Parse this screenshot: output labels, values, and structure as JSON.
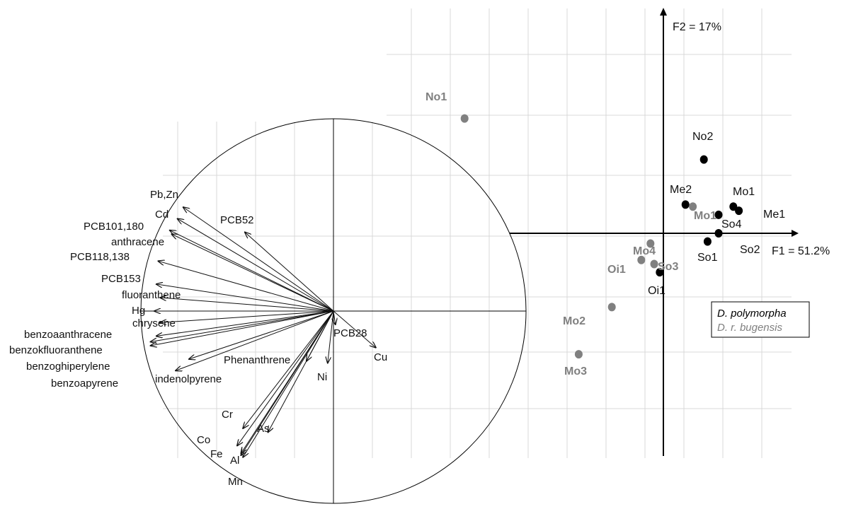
{
  "chart_data": [
    {
      "type": "correlation_circle",
      "variables": [
        {
          "name": "Pb,Zn",
          "x": -0.78,
          "y": 0.54
        },
        {
          "name": "Cd",
          "x": -0.81,
          "y": 0.48
        },
        {
          "name": "PCB52",
          "x": -0.46,
          "y": 0.41
        },
        {
          "name": "PCB101,180",
          "x": -0.85,
          "y": 0.42
        },
        {
          "name": "anthracene",
          "x": -0.84,
          "y": 0.4
        },
        {
          "name": "PCB118,138",
          "x": -0.91,
          "y": 0.26
        },
        {
          "name": "PCB153",
          "x": -0.92,
          "y": 0.14
        },
        {
          "name": "fluoranthene",
          "x": -0.9,
          "y": 0.07
        },
        {
          "name": "Hg",
          "x": -0.93,
          "y": 0.0
        },
        {
          "name": "chrysene",
          "x": -0.9,
          "y": -0.06
        },
        {
          "name": "benzoaanthracene",
          "x": -0.95,
          "y": -0.16
        },
        {
          "name": "benzokfluoranthene",
          "x": -0.92,
          "y": -0.13
        },
        {
          "name": "benzoghiperylene",
          "x": -0.95,
          "y": -0.18
        },
        {
          "name": "benzoapyrene",
          "x": -0.82,
          "y": -0.31
        },
        {
          "name": "indenolpyrene",
          "x": -0.75,
          "y": -0.25
        },
        {
          "name": "Phenanthrene",
          "x": -0.14,
          "y": -0.26
        },
        {
          "name": "PCB28",
          "x": 0.01,
          "y": -0.07
        },
        {
          "name": "Cu",
          "x": 0.22,
          "y": -0.19
        },
        {
          "name": "Ni",
          "x": -0.03,
          "y": -0.27
        },
        {
          "name": "Cr",
          "x": -0.47,
          "y": -0.61
        },
        {
          "name": "As",
          "x": -0.34,
          "y": -0.63
        },
        {
          "name": "Co",
          "x": -0.5,
          "y": -0.7
        },
        {
          "name": "Fe",
          "x": -0.48,
          "y": -0.74
        },
        {
          "name": "Al",
          "x": -0.48,
          "y": -0.75
        },
        {
          "name": "Mn",
          "x": -0.47,
          "y": -0.76
        }
      ]
    },
    {
      "type": "scatter",
      "xlabel": "F1 = 51.2%",
      "ylabel": "F2 = 17%",
      "xlim": [
        -5.8,
        2.9
      ],
      "ylim": [
        -4.8,
        4.5
      ],
      "legend": {
        "position": "lower-right",
        "entries": [
          {
            "name": "D. polymorpha",
            "color": "#000000"
          },
          {
            "name": "D. r. bugensis",
            "color": "#808080"
          }
        ]
      },
      "series": [
        {
          "name": "D. polymorpha",
          "color": "#000000",
          "points": [
            {
              "label": "No2",
              "x": 1.1,
              "y": 1.8
            },
            {
              "label": "Me2",
              "x": 0.6,
              "y": 0.7
            },
            {
              "label": "Mo1",
              "x": 1.9,
              "y": 0.65
            },
            {
              "label": "Me1",
              "x": 2.05,
              "y": 0.55
            },
            {
              "label": "So4",
              "x": 1.5,
              "y": 0.45
            },
            {
              "label": "So2",
              "x": 1.5,
              "y": 0.0
            },
            {
              "label": "So1",
              "x": 1.2,
              "y": -0.2
            },
            {
              "label": "Oi1",
              "x": -0.1,
              "y": -0.95
            }
          ]
        },
        {
          "name": "D. r. bugensis",
          "color": "#808080",
          "points": [
            {
              "label": "No1",
              "x": -5.4,
              "y": 2.8
            },
            {
              "label": "Mo1",
              "x": 0.8,
              "y": 0.65
            },
            {
              "label": "Mo4",
              "x": -0.35,
              "y": -0.25
            },
            {
              "label": "So3",
              "x": -0.25,
              "y": -0.75
            },
            {
              "label": "Oi1",
              "x": -0.6,
              "y": -0.65
            },
            {
              "label": "Mo2",
              "x": -1.4,
              "y": -1.8
            },
            {
              "label": "Mo3",
              "x": -2.3,
              "y": -2.95
            }
          ]
        }
      ]
    }
  ]
}
